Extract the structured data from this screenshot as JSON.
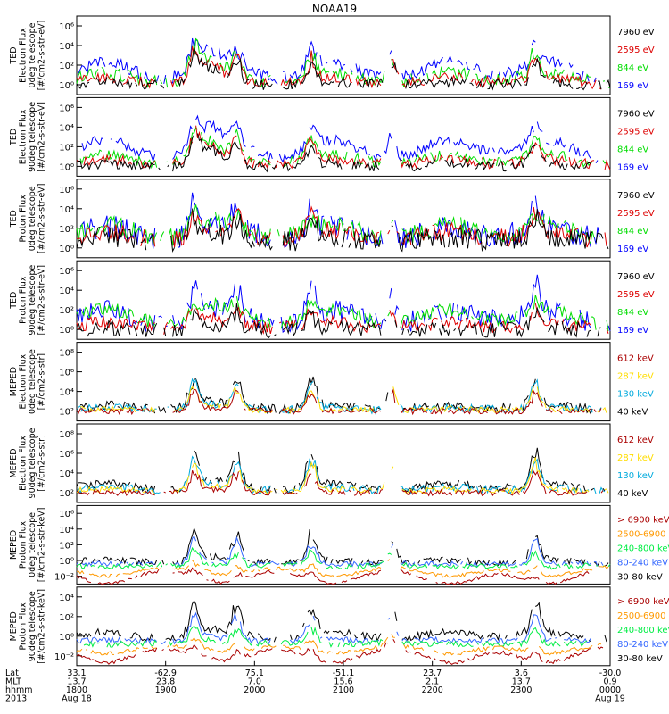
{
  "title": "NOAA19",
  "colors": {
    "black": "#000000",
    "blue": "#0000ff",
    "green": "#00dd00",
    "red": "#dd0000",
    "dred": "#aa0000",
    "yellow": "#ffdd00",
    "cyan": "#00aadd",
    "orange": "#ff9900",
    "lime": "#00ee44",
    "mblue": "#3366ff"
  },
  "chart_data": [
    {
      "type": "line",
      "id": "ted-e-0",
      "ylabel_lines": [
        "TED",
        "Electron Flux",
        "0deg telescope",
        "[#/cm2-s-str-eV]"
      ],
      "ylim_exp": [
        0,
        6
      ],
      "tick_labels": [
        "10⁰",
        "10²",
        "10⁴",
        "10⁶"
      ],
      "legend": [
        {
          "label": "7960 eV",
          "color": "#000000"
        },
        {
          "label": "2595 eV",
          "color": "#dd0000"
        },
        {
          "label": "844 eV",
          "color": "#00dd00"
        },
        {
          "label": "169 eV",
          "color": "#0000ff"
        }
      ],
      "base": 0.6,
      "series": [
        {
          "color": "#0000ff",
          "lift": 1.6,
          "noise": 0.5,
          "peak": 1.9
        },
        {
          "color": "#00dd00",
          "lift": 0.9,
          "noise": 0.5,
          "peak": 2.2
        },
        {
          "color": "#dd0000",
          "lift": 0.6,
          "noise": 0.4,
          "peak": 2.0
        },
        {
          "color": "#000000",
          "lift": 0.3,
          "noise": 0.4,
          "peak": 2.0
        }
      ]
    },
    {
      "type": "line",
      "id": "ted-e-90",
      "ylabel_lines": [
        "TED",
        "Electron Flux",
        "90deg telescope",
        "[#/cm2-s-str-eV]"
      ],
      "ylim_exp": [
        0,
        6
      ],
      "tick_labels": [
        "10⁰",
        "10²",
        "10⁴",
        "10⁶"
      ],
      "legend": [
        {
          "label": "7960 eV",
          "color": "#000000"
        },
        {
          "label": "2595 eV",
          "color": "#dd0000"
        },
        {
          "label": "844 eV",
          "color": "#00dd00"
        },
        {
          "label": "169 eV",
          "color": "#0000ff"
        }
      ],
      "base": 0.6,
      "series": [
        {
          "color": "#0000ff",
          "lift": 1.9,
          "noise": 0.4,
          "peak": 1.8
        },
        {
          "color": "#00dd00",
          "lift": 0.9,
          "noise": 0.4,
          "peak": 2.0
        },
        {
          "color": "#dd0000",
          "lift": 0.6,
          "noise": 0.4,
          "peak": 2.0
        },
        {
          "color": "#000000",
          "lift": 0.3,
          "noise": 0.4,
          "peak": 1.9
        }
      ]
    },
    {
      "type": "line",
      "id": "ted-p-0",
      "ylabel_lines": [
        "TED",
        "Proton Flux",
        "0deg telescope",
        "[#/cm2-s-str-eV]"
      ],
      "ylim_exp": [
        0,
        6
      ],
      "tick_labels": [
        "10⁰",
        "10²",
        "10⁴",
        "10⁶"
      ],
      "legend": [
        {
          "label": "7960 eV",
          "color": "#000000"
        },
        {
          "label": "2595 eV",
          "color": "#dd0000"
        },
        {
          "label": "844 eV",
          "color": "#00dd00"
        },
        {
          "label": "169 eV",
          "color": "#0000ff"
        }
      ],
      "base": 1.0,
      "series": [
        {
          "color": "#0000ff",
          "lift": 1.2,
          "noise": 0.9,
          "peak": 2.5
        },
        {
          "color": "#00dd00",
          "lift": 1.3,
          "noise": 0.7,
          "peak": 1.2
        },
        {
          "color": "#dd0000",
          "lift": 0.9,
          "noise": 0.7,
          "peak": 1.6
        },
        {
          "color": "#000000",
          "lift": 0.5,
          "noise": 0.8,
          "peak": 1.6
        }
      ]
    },
    {
      "type": "line",
      "id": "ted-p-90",
      "ylabel_lines": [
        "TED",
        "Proton Flux",
        "90deg telescope",
        "[#/cm2-s-str-eV]"
      ],
      "ylim_exp": [
        0,
        6
      ],
      "tick_labels": [
        "10⁰",
        "10²",
        "10⁴",
        "10⁶"
      ],
      "legend": [
        {
          "label": "7960 eV",
          "color": "#000000"
        },
        {
          "label": "2595 eV",
          "color": "#dd0000"
        },
        {
          "label": "844 eV",
          "color": "#00dd00"
        },
        {
          "label": "169 eV",
          "color": "#0000ff"
        }
      ],
      "base": 0.6,
      "series": [
        {
          "color": "#0000ff",
          "lift": 1.4,
          "noise": 0.8,
          "peak": 2.6
        },
        {
          "color": "#00dd00",
          "lift": 1.5,
          "noise": 0.5,
          "peak": 1.0
        },
        {
          "color": "#dd0000",
          "lift": 0.6,
          "noise": 0.5,
          "peak": 1.5
        },
        {
          "color": "#000000",
          "lift": 0.2,
          "noise": 0.6,
          "peak": 1.5
        }
      ]
    },
    {
      "type": "line",
      "id": "meped-e-0",
      "ylabel_lines": [
        "MEPED",
        "Electron Flux",
        "0deg telescope",
        "[#/cm2-s-str]"
      ],
      "ylim_exp": [
        1,
        9
      ],
      "tick_labels": [
        "10²",
        "10⁴",
        "10⁶",
        "10⁸"
      ],
      "legend": [
        {
          "label": "612 keV",
          "color": "#aa0000"
        },
        {
          "label": "287 keV",
          "color": "#ffdd00"
        },
        {
          "label": "130 keV",
          "color": "#00aadd"
        },
        {
          "label": "40 keV",
          "color": "#000000"
        }
      ],
      "base": 2.0,
      "series": [
        {
          "color": "#000000",
          "lift": 0.5,
          "noise": 0.5,
          "peak": 3.4
        },
        {
          "color": "#00aadd",
          "lift": 0.3,
          "noise": 0.4,
          "peak": 3.0
        },
        {
          "color": "#ffdd00",
          "lift": 0.2,
          "noise": 0.3,
          "peak": 2.6
        },
        {
          "color": "#aa0000",
          "lift": 0.0,
          "noise": 0.3,
          "peak": 2.2
        }
      ]
    },
    {
      "type": "line",
      "id": "meped-e-90",
      "ylabel_lines": [
        "MEPED",
        "Electron Flux",
        "90deg telescope",
        "[#/cm2-s-str]"
      ],
      "ylim_exp": [
        1,
        9
      ],
      "tick_labels": [
        "10²",
        "10⁴",
        "10⁶",
        "10⁸"
      ],
      "legend": [
        {
          "label": "612 keV",
          "color": "#aa0000"
        },
        {
          "label": "287 keV",
          "color": "#ffdd00"
        },
        {
          "label": "130 keV",
          "color": "#00aadd"
        },
        {
          "label": "40 keV",
          "color": "#000000"
        }
      ],
      "base": 2.0,
      "series": [
        {
          "color": "#000000",
          "lift": 0.8,
          "noise": 0.4,
          "peak": 4.0
        },
        {
          "color": "#00aadd",
          "lift": 0.5,
          "noise": 0.4,
          "peak": 3.6
        },
        {
          "color": "#ffdd00",
          "lift": 0.3,
          "noise": 0.3,
          "peak": 3.2
        },
        {
          "color": "#aa0000",
          "lift": 0.0,
          "noise": 0.3,
          "peak": 2.4
        }
      ]
    },
    {
      "type": "line",
      "id": "meped-p-0",
      "ylabel_lines": [
        "MEPED",
        "Proton Flux",
        "0deg telescope",
        "[#/cm2-s-str-keV]"
      ],
      "ylim_exp": [
        -2,
        7
      ],
      "tick_labels": [
        "10⁻²",
        "10⁰",
        "10²",
        "10⁴",
        "10⁶"
      ],
      "legend": [
        {
          "label": "> 6900 keV",
          "color": "#aa0000"
        },
        {
          "label": "2500-6900",
          "color": "#ff9900"
        },
        {
          "label": "240-800 keV",
          "color": "#00ee44"
        },
        {
          "label": "80-240 keV",
          "color": "#3366ff"
        },
        {
          "label": "30-80 keV",
          "color": "#000000"
        }
      ],
      "base": 0.3,
      "series": [
        {
          "color": "#000000",
          "lift": 0.4,
          "noise": 0.4,
          "peak": 3.8
        },
        {
          "color": "#3366ff",
          "lift": 0.0,
          "noise": 0.3,
          "peak": 3.2
        },
        {
          "color": "#00ee44",
          "lift": -0.3,
          "noise": 0.3,
          "peak": 2.0
        },
        {
          "color": "#ff9900",
          "lift": -1.2,
          "noise": 0.2,
          "peak": 1.2
        },
        {
          "color": "#aa0000",
          "lift": -2.0,
          "noise": 0.2,
          "peak": 1.0
        }
      ]
    },
    {
      "type": "line",
      "id": "meped-p-90",
      "ylabel_lines": [
        "MEPED",
        "Proton Flux",
        "90deg telescope",
        "[#/cm2-s-str-keV]"
      ],
      "ylim_exp": [
        -2,
        6
      ],
      "tick_labels": [
        "10⁻²",
        "10⁰",
        "10²",
        "10⁴"
      ],
      "legend": [
        {
          "label": "> 6900 keV",
          "color": "#aa0000"
        },
        {
          "label": "2500-6900",
          "color": "#ff9900"
        },
        {
          "label": "240-800 keV",
          "color": "#00ee44"
        },
        {
          "label": "80-240 keV",
          "color": "#3366ff"
        },
        {
          "label": "30-80 keV",
          "color": "#000000"
        }
      ],
      "base": 0.4,
      "series": [
        {
          "color": "#000000",
          "lift": 0.9,
          "noise": 0.4,
          "peak": 3.6
        },
        {
          "color": "#3366ff",
          "lift": 0.2,
          "noise": 0.3,
          "peak": 3.0
        },
        {
          "color": "#00ee44",
          "lift": -0.2,
          "noise": 0.3,
          "peak": 2.0
        },
        {
          "color": "#ff9900",
          "lift": -1.0,
          "noise": 0.2,
          "peak": 1.4
        },
        {
          "color": "#aa0000",
          "lift": -1.8,
          "noise": 0.2,
          "peak": 1.0
        }
      ]
    }
  ],
  "x_axis": {
    "row_labels": [
      "Lat",
      "MLT",
      "hhmm",
      "2013"
    ],
    "ticks": [
      {
        "lat": "33.1",
        "mlt": "13.7",
        "hhmm": "1800",
        "date": "Aug 18"
      },
      {
        "lat": "-62.9",
        "mlt": "23.8",
        "hhmm": "1900",
        "date": ""
      },
      {
        "lat": "75.1",
        "mlt": "7.0",
        "hhmm": "2000",
        "date": ""
      },
      {
        "lat": "-51.1",
        "mlt": "15.6",
        "hhmm": "2100",
        "date": ""
      },
      {
        "lat": "23.7",
        "mlt": "2.1",
        "hhmm": "2200",
        "date": ""
      },
      {
        "lat": "3.6",
        "mlt": "13.7",
        "hhmm": "2300",
        "date": ""
      },
      {
        "lat": "-30.0",
        "mlt": "0.9",
        "hhmm": "0000",
        "date": "Aug 19"
      }
    ],
    "passes": [
      0.055,
      0.27,
      0.48,
      0.7,
      0.88
    ],
    "peak_at": [
      0.22,
      0.3,
      0.44,
      0.59,
      0.86
    ]
  }
}
